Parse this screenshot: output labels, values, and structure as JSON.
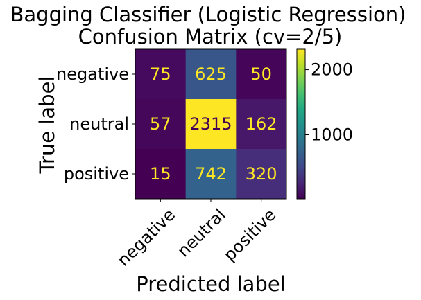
{
  "chart_data": {
    "type": "heatmap",
    "title": "Bagging Classifier (Logistic Regression)",
    "subtitle": "Confusion Matrix (cv=2/5)",
    "xlabel": "Predicted label",
    "ylabel": "True label",
    "x_categories": [
      "negative",
      "neutral",
      "positive"
    ],
    "y_categories": [
      "negative",
      "neutral",
      "positive"
    ],
    "values": [
      [
        75,
        625,
        50
      ],
      [
        57,
        2315,
        162
      ],
      [
        15,
        742,
        320
      ]
    ],
    "colormap": "viridis",
    "colorbar": {
      "range": [
        15,
        2315
      ],
      "ticks": [
        1000,
        2000
      ],
      "tick_labels": [
        "1000",
        "2000"
      ]
    },
    "text_color_light": "#fde725",
    "text_color_dark": "#440154"
  }
}
